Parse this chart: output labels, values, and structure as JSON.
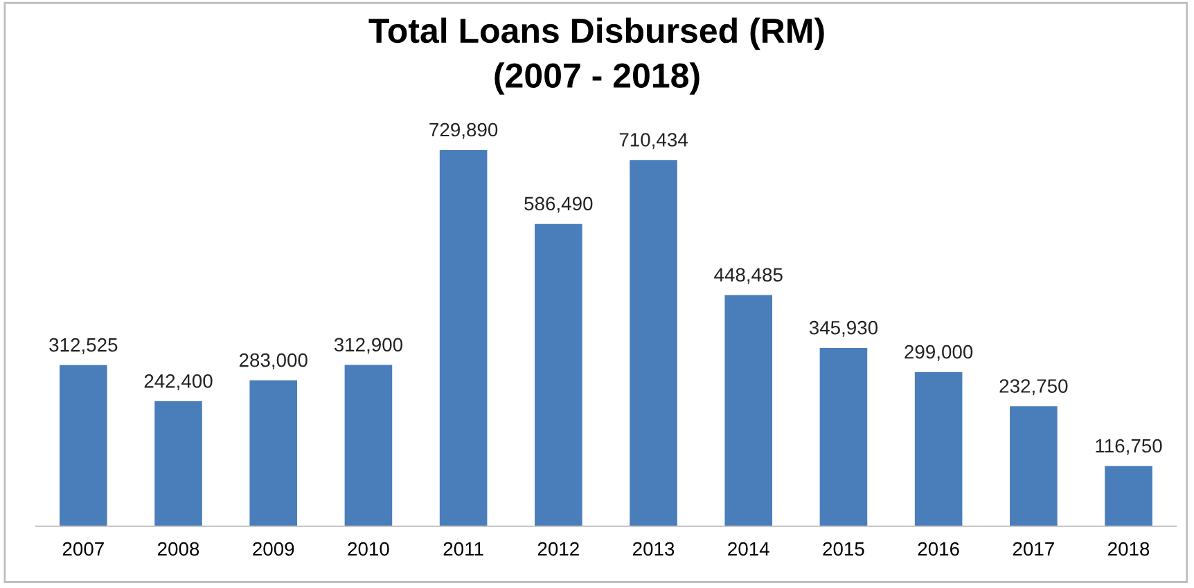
{
  "chart_data": {
    "type": "bar",
    "title": "Total Loans Disbursed (RM)\n(2007 - 2018)",
    "categories": [
      "2007",
      "2008",
      "2009",
      "2010",
      "2011",
      "2012",
      "2013",
      "2014",
      "2015",
      "2016",
      "2017",
      "2018"
    ],
    "values": [
      312525,
      242400,
      283000,
      312900,
      729890,
      586490,
      710434,
      448485,
      345930,
      299000,
      232750,
      116750
    ],
    "value_labels": [
      "312,525",
      "242,400",
      "283,000",
      "312,900",
      "729,890",
      "586,490",
      "710,434",
      "448,485",
      "345,930",
      "299,000",
      "232,750",
      "116,750"
    ],
    "color": "#4a7ebb",
    "grid": false,
    "legend": false
  }
}
